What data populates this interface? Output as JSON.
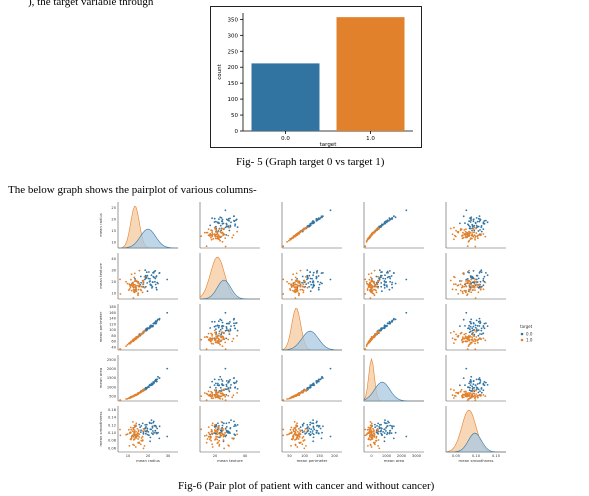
{
  "page": {
    "top_text": "), the target variable through ",
    "lead_text": "The below graph shows the pairplot of various columns-",
    "fig5_caption": "Fig- 5 (Graph target 0 vs target 1)",
    "fig6_caption": "Fig-6 (Pair plot of patient with cancer and without cancer)"
  },
  "colors": {
    "blue": "#3274a1",
    "orange": "#e1812c",
    "light_orange": "#f6c99f",
    "light_blue": "#a9c8e2"
  },
  "chart_data": [
    {
      "type": "bar",
      "categories": [
        "0.0",
        "1.0"
      ],
      "values": [
        212,
        357
      ],
      "xlabel": "target",
      "ylabel": "count",
      "ylim": [
        0,
        370
      ],
      "yticks": [
        0,
        50,
        100,
        150,
        200,
        250,
        300,
        350
      ],
      "bar_colors": [
        "#3274a1",
        "#e1812c"
      ]
    },
    {
      "type": "scatter",
      "layout": "pairplot",
      "variables": [
        "mean radius",
        "mean texture",
        "mean perimeter",
        "mean area",
        "mean smoothness"
      ],
      "ylabels": [
        "mean radius",
        "mean texture",
        "mean perimeter",
        "mean area",
        "mean smoothness"
      ],
      "xlabels": [
        "mean radius",
        "mean texture",
        "mean perimeter",
        "mean area",
        "mean smoothness"
      ],
      "legend": {
        "title": "target",
        "entries": [
          "0.0",
          "1.0"
        ],
        "placement": "right"
      },
      "ranges": [
        [
          5,
          30
        ],
        [
          8,
          42
        ],
        [
          40,
          200
        ],
        [
          100,
          3000
        ],
        [
          0.05,
          0.16
        ]
      ],
      "xticks": [
        [
          "10",
          "20",
          "30"
        ],
        [
          "20",
          "40"
        ],
        [
          "50",
          "100",
          "150",
          "200"
        ],
        [
          "0",
          "1000",
          "2000",
          "3000"
        ],
        [
          "0.05",
          "0.10",
          "0.15"
        ]
      ],
      "yticks": [
        [
          "10",
          "15",
          "20",
          "25"
        ],
        [
          "10",
          "20",
          "30",
          "40"
        ],
        [
          "40",
          "60",
          "80",
          "100",
          "120",
          "140",
          "160",
          "180"
        ],
        [
          "500",
          "1000",
          "1500",
          "2000",
          "2500"
        ],
        [
          "0.06",
          "0.08",
          "0.10",
          "0.12",
          "0.14",
          "0.16"
        ]
      ],
      "groups": [
        {
          "name": "0.0",
          "color": "#3274a1",
          "means": [
            17.5,
            21.6,
            115,
            978,
            0.103
          ],
          "sds": [
            3.2,
            3.8,
            22,
            368,
            0.012
          ]
        },
        {
          "name": "1.0",
          "color": "#e1812c",
          "means": [
            12.1,
            17.9,
            78,
            463,
            0.092
          ],
          "sds": [
            1.8,
            4.0,
            12,
            135,
            0.013
          ]
        }
      ]
    }
  ]
}
